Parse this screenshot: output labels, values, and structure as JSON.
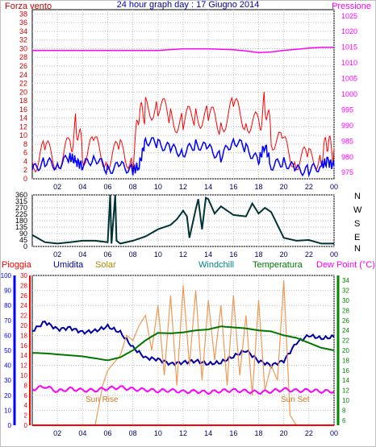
{
  "header": {
    "left_label": "Forza vento",
    "title": "24 hour graph day : 17 Giugno 2014",
    "right_label": "Pressione"
  },
  "direction_labels": [
    "N",
    "W",
    "S",
    "E",
    "N"
  ],
  "bottom_header": {
    "pioggia": "Pioggia",
    "umidita": "Umidita",
    "solar": "Solar",
    "windchill": "Windchill",
    "temperatura": "Temperatura",
    "dewpoint": "Dew Point (°C)"
  },
  "annotations": {
    "sunrise": "Sun Rise",
    "sunset": "Sun Set"
  },
  "colors": {
    "wind_gust": "#ff0000",
    "wind_avg": "#0000ff",
    "pressure": "#ff00ff",
    "direction": "#003333",
    "rain": "#ff0000",
    "humidity": "#0000aa",
    "solar": "#ee9955",
    "windchill": "#008888",
    "temperature": "#007700",
    "dewpoint": "#ff00ff",
    "left_axis": "#cc0000",
    "right_axis": "#ff00ff",
    "rain_axis": "#ff0000",
    "humidity_axis": "#0000ff",
    "temp_axis": "#008800",
    "grid": "#bbbbbb"
  },
  "chart_data": [
    {
      "type": "line",
      "panel": "wind-pressure",
      "x_ticks": [
        "02",
        "04",
        "06",
        "08",
        "10",
        "12",
        "14",
        "16",
        "18",
        "20",
        "22",
        "00"
      ],
      "xlim": [
        0,
        24
      ],
      "grid": true,
      "left_axis": {
        "ticks": [
          "0",
          "2",
          "4",
          "6",
          "8",
          "10",
          "12",
          "14",
          "16",
          "18",
          "20",
          "22",
          "24",
          "26",
          "28",
          "30",
          "32",
          "34",
          "36",
          "38"
        ],
        "ylim": [
          0,
          39
        ]
      },
      "right_axis": {
        "ticks": [
          "975",
          "980",
          "985",
          "990",
          "995",
          "1000",
          "1005",
          "1010",
          "1015",
          "1020",
          "1025"
        ],
        "ylim": [
          973,
          1027
        ]
      },
      "series": [
        {
          "name": "Forza vento",
          "color": "#ff0000",
          "axis": "left",
          "style": "gust",
          "x": [
            0,
            1,
            2,
            3,
            3.5,
            4,
            5,
            6,
            7,
            8,
            8.5,
            9,
            10,
            11,
            12,
            13,
            14,
            15,
            16,
            17,
            18,
            18.5,
            19,
            20,
            21,
            22,
            23,
            23.5,
            24
          ],
          "y": [
            4,
            6,
            5,
            7,
            13,
            6,
            7,
            5,
            6,
            5,
            14,
            16,
            17,
            14,
            13,
            15,
            14,
            13,
            16,
            14,
            12,
            18,
            10,
            7,
            5,
            4,
            6,
            7,
            7
          ]
        },
        {
          "name": "",
          "color": "#0000ff",
          "axis": "left",
          "x": [
            0,
            1,
            2,
            3,
            3.5,
            4,
            5,
            6,
            7,
            8,
            8.5,
            9,
            10,
            11,
            12,
            13,
            14,
            15,
            16,
            17,
            18,
            18.5,
            19,
            20,
            21,
            22,
            23,
            23.5,
            24
          ],
          "y": [
            2,
            4,
            3,
            5,
            4,
            3,
            5,
            2,
            3,
            2,
            3,
            9,
            8,
            7,
            6,
            8,
            7,
            5,
            9,
            7,
            4,
            8,
            3,
            4,
            2,
            2,
            3,
            4,
            3
          ]
        },
        {
          "name": "Pressione",
          "color": "#ff00ff",
          "axis": "right",
          "x": [
            0,
            2,
            4,
            6,
            8,
            10,
            12,
            14,
            16,
            17,
            18,
            19,
            20,
            22,
            23,
            24
          ],
          "y": [
            1014,
            1014,
            1014,
            1014,
            1014,
            1014,
            1014.5,
            1014.5,
            1014.2,
            1013.8,
            1013.3,
            1013.5,
            1014,
            1014.7,
            1015,
            1015
          ]
        }
      ]
    },
    {
      "type": "line",
      "panel": "direction",
      "x_ticks": [
        "02",
        "04",
        "06",
        "08",
        "10",
        "12",
        "14",
        "16",
        "18",
        "20",
        "22",
        "00"
      ],
      "xlim": [
        0,
        24
      ],
      "grid": true,
      "left_axis": {
        "ticks": [
          "0",
          "45",
          "90",
          "135",
          "180",
          "225",
          "270",
          "315",
          "360"
        ],
        "ylim": [
          0,
          360
        ]
      },
      "series": [
        {
          "name": "",
          "color": "#003333",
          "x": [
            0,
            1,
            2,
            3,
            4,
            5,
            6,
            6.2,
            6.3,
            6.6,
            6.7,
            7,
            8,
            9,
            10,
            11,
            11.5,
            12,
            12.3,
            12.5,
            13,
            13.2,
            13.5,
            13.8,
            14,
            14.5,
            15,
            16,
            17,
            17.5,
            18,
            18.5,
            19,
            20,
            21,
            22,
            23,
            24
          ],
          "y": [
            80,
            30,
            20,
            30,
            40,
            40,
            30,
            360,
            20,
            360,
            40,
            20,
            40,
            70,
            120,
            150,
            190,
            250,
            210,
            60,
            260,
            330,
            120,
            340,
            330,
            230,
            280,
            220,
            210,
            300,
            230,
            270,
            240,
            60,
            40,
            45,
            20,
            20
          ]
        }
      ]
    },
    {
      "type": "line",
      "panel": "rain-humidity-temperature",
      "x_ticks": [
        "02",
        "04",
        "06",
        "08",
        "10",
        "12",
        "14",
        "16",
        "18",
        "20",
        "22",
        "00"
      ],
      "xlim": [
        0,
        24
      ],
      "grid": true,
      "rain_axis": {
        "ticks": [
          "0",
          "2",
          "4",
          "6",
          "8",
          "10",
          "12",
          "14",
          "16",
          "18",
          "20",
          "22",
          "24",
          "26",
          "28",
          "30"
        ],
        "ylim": [
          0,
          30
        ]
      },
      "humidity_axis": {
        "ticks": [
          "0",
          "10",
          "20",
          "30",
          "40",
          "50",
          "60",
          "70",
          "80",
          "90",
          "100"
        ],
        "ylim": [
          0,
          100
        ]
      },
      "temp_axis": {
        "ticks": [
          "6",
          "8",
          "10",
          "12",
          "14",
          "16",
          "18",
          "20",
          "22",
          "24",
          "26",
          "28",
          "30",
          "32",
          "34"
        ],
        "ylim": [
          5,
          35
        ]
      },
      "series": [
        {
          "name": "Umidita",
          "color": "#0000aa",
          "axis": "humidity",
          "x": [
            0,
            1,
            2,
            3,
            4,
            5,
            6,
            7,
            8,
            9,
            10,
            11,
            12,
            13,
            14,
            15,
            16,
            17,
            18,
            19,
            20,
            21,
            22,
            23,
            24
          ],
          "y": [
            63,
            69,
            64,
            65,
            62,
            63,
            66,
            62,
            52,
            45,
            44,
            41,
            42,
            43,
            41,
            42,
            46,
            50,
            43,
            40,
            43,
            55,
            60,
            58,
            59
          ]
        },
        {
          "name": "Solar",
          "color": "#ee9955",
          "axis": "rain",
          "x": [
            0,
            5,
            5.3,
            5.6,
            6,
            7,
            7.5,
            8,
            8.5,
            9,
            9.5,
            10,
            10.5,
            11,
            11.5,
            12,
            12.5,
            13,
            13.5,
            14,
            14.5,
            15,
            15.5,
            16,
            16.5,
            17,
            17.5,
            18,
            18.5,
            19,
            19.5,
            20,
            20.5,
            21,
            24
          ],
          "y": [
            0,
            0,
            4,
            8,
            11,
            14,
            18,
            17,
            20,
            22,
            15,
            24,
            10,
            26,
            8,
            28,
            12,
            27,
            9,
            25,
            13,
            24,
            8,
            26,
            10,
            22,
            6,
            25,
            7,
            12,
            9,
            29,
            2,
            0,
            0
          ]
        },
        {
          "name": "Temperatura",
          "color": "#007700",
          "axis": "temp",
          "x": [
            0,
            1,
            2,
            3,
            4,
            5,
            6,
            7,
            8,
            9,
            10,
            11,
            12,
            13,
            14,
            15,
            16,
            17,
            18,
            19,
            20,
            21,
            22,
            23,
            24
          ],
          "y": [
            19.5,
            19.4,
            19.2,
            19,
            18.8,
            18.4,
            18,
            18.6,
            20,
            22,
            23.5,
            23.4,
            23.6,
            24,
            24.2,
            24.8,
            24.6,
            24.4,
            24,
            23.8,
            23,
            22.5,
            21.5,
            20.5,
            20
          ]
        },
        {
          "name": "Dew Point (°C)",
          "color": "#ff00ff",
          "axis": "temp",
          "x": [
            0,
            1,
            2,
            3,
            4,
            5,
            6,
            7,
            8,
            9,
            10,
            11,
            12,
            13,
            14,
            15,
            16,
            17,
            18,
            19,
            20,
            21,
            22,
            23,
            24
          ],
          "y": [
            12.2,
            12.8,
            11.8,
            12.3,
            12,
            12,
            12.4,
            12.6,
            12.2,
            12.1,
            11.9,
            12.0,
            11.7,
            11.8,
            11.6,
            11.9,
            12.0,
            11.8,
            11.6,
            11.8,
            12.2,
            11.9,
            12.0,
            11.8,
            11.8
          ]
        },
        {
          "name": "Pioggia",
          "color": "#ff0000",
          "axis": "rain",
          "x": [
            0,
            24
          ],
          "y": [
            0,
            0
          ]
        }
      ]
    }
  ]
}
